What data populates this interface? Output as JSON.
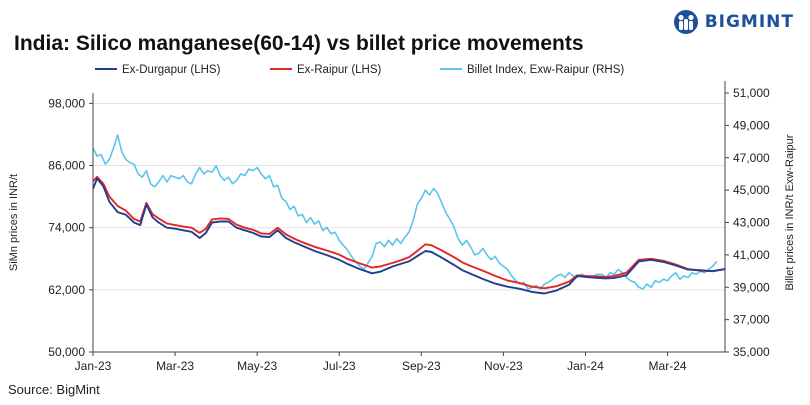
{
  "brand": {
    "logo_text": "BIGMINT"
  },
  "title": "India: Silico manganese(60-14) vs billet price movements",
  "source": "Source: BigMint",
  "colors": {
    "durgapur": "#1f3f8f",
    "raipur": "#e32626",
    "billet": "#5cc4ea",
    "brand": "#1c4f9c"
  },
  "chart_data": {
    "type": "line",
    "title": "India: Silico manganese(60-14) vs billet price movements",
    "ylabel": "SiMn prices in INR/t",
    "y2label": "Billet prices in INR/t Exw-Raipur",
    "ylim": [
      50000,
      100000
    ],
    "y2lim": [
      35000,
      51000
    ],
    "yticks": [
      "50,000",
      "62,000",
      "74,000",
      "86,000",
      "98,000"
    ],
    "y2ticks": [
      "35,000",
      "37,000",
      "39,000",
      "41,000",
      "43,000",
      "45,000",
      "47,000",
      "49,000",
      "51,000"
    ],
    "xticks": [
      "Jan-23",
      "Mar-23",
      "May-23",
      "Jul-23",
      "Sep-23",
      "Nov-23",
      "Jan-24",
      "Mar-24"
    ],
    "legend_position": "top",
    "grid": "horizontal",
    "x_axis": "months Jan-23 to Apr-24 (month offset, 0 = Jan-23)",
    "series": [
      {
        "name": "Ex-Durgapur (LHS)",
        "axis": "left",
        "color": "#1f3f8f",
        "points": [
          [
            0,
            81500
          ],
          [
            0.1,
            83500
          ],
          [
            0.25,
            82000
          ],
          [
            0.4,
            79000
          ],
          [
            0.6,
            77000
          ],
          [
            0.8,
            76500
          ],
          [
            1.0,
            75000
          ],
          [
            1.15,
            74500
          ],
          [
            1.3,
            78500
          ],
          [
            1.45,
            76000
          ],
          [
            1.6,
            75000
          ],
          [
            1.8,
            74000
          ],
          [
            2.0,
            73800
          ],
          [
            2.2,
            73500
          ],
          [
            2.4,
            73200
          ],
          [
            2.6,
            72000
          ],
          [
            2.75,
            73000
          ],
          [
            2.9,
            75000
          ],
          [
            3.1,
            75200
          ],
          [
            3.3,
            75200
          ],
          [
            3.5,
            74000
          ],
          [
            3.7,
            73500
          ],
          [
            3.9,
            73000
          ],
          [
            4.1,
            72300
          ],
          [
            4.3,
            72200
          ],
          [
            4.5,
            73500
          ],
          [
            4.7,
            72000
          ],
          [
            4.9,
            71200
          ],
          [
            5.1,
            70500
          ],
          [
            5.4,
            69500
          ],
          [
            5.7,
            68700
          ],
          [
            6.0,
            67800
          ],
          [
            6.2,
            67000
          ],
          [
            6.5,
            66000
          ],
          [
            6.8,
            65200
          ],
          [
            7.0,
            65500
          ],
          [
            7.3,
            66500
          ],
          [
            7.5,
            67000
          ],
          [
            7.7,
            67500
          ],
          [
            7.9,
            68500
          ],
          [
            8.1,
            69500
          ],
          [
            8.25,
            69300
          ],
          [
            8.5,
            68200
          ],
          [
            8.8,
            66800
          ],
          [
            9.0,
            65800
          ],
          [
            9.2,
            65100
          ],
          [
            9.5,
            64100
          ],
          [
            9.8,
            63200
          ],
          [
            10.1,
            62600
          ],
          [
            10.4,
            62200
          ],
          [
            10.7,
            61600
          ],
          [
            11.0,
            61300
          ],
          [
            11.3,
            61900
          ],
          [
            11.6,
            63000
          ],
          [
            11.8,
            64700
          ],
          [
            12.0,
            64500
          ],
          [
            12.3,
            64300
          ],
          [
            12.5,
            64200
          ],
          [
            12.7,
            64300
          ],
          [
            13.0,
            64800
          ],
          [
            13.3,
            67500
          ],
          [
            13.6,
            67800
          ],
          [
            13.9,
            67400
          ],
          [
            14.2,
            66700
          ],
          [
            14.5,
            65900
          ],
          [
            14.8,
            65800
          ],
          [
            15.1,
            65600
          ],
          [
            15.4,
            66000
          ]
        ]
      },
      {
        "name": "Ex-Raipur (LHS)",
        "axis": "left",
        "color": "#e32626",
        "points": [
          [
            0,
            83000
          ],
          [
            0.1,
            83800
          ],
          [
            0.25,
            82500
          ],
          [
            0.4,
            80000
          ],
          [
            0.6,
            78200
          ],
          [
            0.8,
            77300
          ],
          [
            1.0,
            75700
          ],
          [
            1.15,
            75200
          ],
          [
            1.3,
            78800
          ],
          [
            1.45,
            76600
          ],
          [
            1.6,
            75800
          ],
          [
            1.8,
            74800
          ],
          [
            2.0,
            74500
          ],
          [
            2.2,
            74200
          ],
          [
            2.4,
            74000
          ],
          [
            2.6,
            73000
          ],
          [
            2.75,
            73800
          ],
          [
            2.9,
            75600
          ],
          [
            3.1,
            75800
          ],
          [
            3.3,
            75700
          ],
          [
            3.5,
            74600
          ],
          [
            3.7,
            74000
          ],
          [
            3.9,
            73600
          ],
          [
            4.1,
            72900
          ],
          [
            4.3,
            72800
          ],
          [
            4.5,
            74000
          ],
          [
            4.7,
            72700
          ],
          [
            4.9,
            71900
          ],
          [
            5.1,
            71200
          ],
          [
            5.4,
            70300
          ],
          [
            5.7,
            69600
          ],
          [
            6.0,
            68800
          ],
          [
            6.2,
            68000
          ],
          [
            6.5,
            67100
          ],
          [
            6.8,
            66300
          ],
          [
            7.0,
            66500
          ],
          [
            7.3,
            67200
          ],
          [
            7.5,
            67700
          ],
          [
            7.7,
            68300
          ],
          [
            7.9,
            69500
          ],
          [
            8.1,
            70800
          ],
          [
            8.25,
            70600
          ],
          [
            8.5,
            69600
          ],
          [
            8.8,
            68300
          ],
          [
            9.0,
            67300
          ],
          [
            9.2,
            66600
          ],
          [
            9.5,
            65700
          ],
          [
            9.8,
            64700
          ],
          [
            10.1,
            63800
          ],
          [
            10.4,
            63300
          ],
          [
            10.7,
            62600
          ],
          [
            11.0,
            62300
          ],
          [
            11.3,
            62700
          ],
          [
            11.6,
            63600
          ],
          [
            11.8,
            64800
          ],
          [
            12.0,
            64700
          ],
          [
            12.3,
            64600
          ],
          [
            12.5,
            64500
          ],
          [
            12.7,
            64700
          ],
          [
            13.0,
            65300
          ],
          [
            13.3,
            67800
          ],
          [
            13.6,
            68000
          ],
          [
            13.9,
            67600
          ],
          [
            14.2,
            66900
          ],
          [
            14.5,
            66000
          ],
          [
            14.8,
            65700
          ],
          [
            15.1,
            65600
          ],
          [
            15.4,
            66000
          ]
        ]
      },
      {
        "name": "Billet Index, Exw-Raipur (RHS)",
        "axis": "right",
        "color": "#5cc4ea",
        "points": [
          [
            0,
            47600
          ],
          [
            0.1,
            47100
          ],
          [
            0.2,
            47200
          ],
          [
            0.3,
            46600
          ],
          [
            0.4,
            46900
          ],
          [
            0.5,
            47600
          ],
          [
            0.6,
            48400
          ],
          [
            0.7,
            47400
          ],
          [
            0.8,
            46900
          ],
          [
            0.9,
            46700
          ],
          [
            1.0,
            46600
          ],
          [
            1.1,
            46000
          ],
          [
            1.2,
            45800
          ],
          [
            1.3,
            46200
          ],
          [
            1.4,
            45400
          ],
          [
            1.5,
            45200
          ],
          [
            1.6,
            45500
          ],
          [
            1.7,
            45900
          ],
          [
            1.8,
            45500
          ],
          [
            1.9,
            45900
          ],
          [
            2.0,
            45800
          ],
          [
            2.1,
            45700
          ],
          [
            2.2,
            45900
          ],
          [
            2.3,
            45500
          ],
          [
            2.4,
            45400
          ],
          [
            2.5,
            46000
          ],
          [
            2.6,
            46400
          ],
          [
            2.7,
            46000
          ],
          [
            2.8,
            46200
          ],
          [
            2.9,
            46100
          ],
          [
            3.0,
            46500
          ],
          [
            3.1,
            45900
          ],
          [
            3.2,
            45600
          ],
          [
            3.3,
            45800
          ],
          [
            3.4,
            45400
          ],
          [
            3.5,
            45600
          ],
          [
            3.6,
            46000
          ],
          [
            3.7,
            45900
          ],
          [
            3.8,
            46300
          ],
          [
            3.9,
            46200
          ],
          [
            4.0,
            46400
          ],
          [
            4.1,
            46000
          ],
          [
            4.2,
            45700
          ],
          [
            4.3,
            45900
          ],
          [
            4.4,
            45200
          ],
          [
            4.5,
            45300
          ],
          [
            4.6,
            44500
          ],
          [
            4.7,
            44300
          ],
          [
            4.8,
            43800
          ],
          [
            4.9,
            44000
          ],
          [
            5.0,
            43400
          ],
          [
            5.1,
            43500
          ],
          [
            5.2,
            43000
          ],
          [
            5.3,
            43300
          ],
          [
            5.4,
            42900
          ],
          [
            5.5,
            43100
          ],
          [
            5.6,
            42500
          ],
          [
            5.7,
            42700
          ],
          [
            5.8,
            42300
          ],
          [
            5.9,
            42400
          ],
          [
            6.0,
            41900
          ],
          [
            6.1,
            41600
          ],
          [
            6.2,
            41300
          ],
          [
            6.3,
            40900
          ],
          [
            6.4,
            40600
          ],
          [
            6.5,
            40300
          ],
          [
            6.6,
            40100
          ],
          [
            6.7,
            40500
          ],
          [
            6.8,
            40900
          ],
          [
            6.9,
            41700
          ],
          [
            7.0,
            41800
          ],
          [
            7.1,
            41500
          ],
          [
            7.2,
            41900
          ],
          [
            7.3,
            41600
          ],
          [
            7.4,
            42000
          ],
          [
            7.5,
            41700
          ],
          [
            7.6,
            42100
          ],
          [
            7.7,
            42400
          ],
          [
            7.8,
            43100
          ],
          [
            7.9,
            44100
          ],
          [
            8.0,
            44500
          ],
          [
            8.1,
            45000
          ],
          [
            8.2,
            44700
          ],
          [
            8.3,
            45100
          ],
          [
            8.4,
            44800
          ],
          [
            8.5,
            44200
          ],
          [
            8.6,
            43600
          ],
          [
            8.7,
            43200
          ],
          [
            8.8,
            42700
          ],
          [
            8.9,
            42000
          ],
          [
            9.0,
            41600
          ],
          [
            9.1,
            41900
          ],
          [
            9.2,
            41500
          ],
          [
            9.3,
            41000
          ],
          [
            9.4,
            41100
          ],
          [
            9.5,
            41400
          ],
          [
            9.6,
            41000
          ],
          [
            9.7,
            40700
          ],
          [
            9.8,
            40900
          ],
          [
            9.9,
            40500
          ],
          [
            10.0,
            40300
          ],
          [
            10.1,
            40100
          ],
          [
            10.2,
            39700
          ],
          [
            10.3,
            39400
          ],
          [
            10.4,
            39200
          ],
          [
            10.5,
            39300
          ],
          [
            10.6,
            38900
          ],
          [
            10.7,
            39000
          ],
          [
            10.8,
            39100
          ],
          [
            10.9,
            38900
          ],
          [
            11.0,
            39200
          ],
          [
            11.1,
            39300
          ],
          [
            11.2,
            39500
          ],
          [
            11.3,
            39700
          ],
          [
            11.4,
            39800
          ],
          [
            11.5,
            39600
          ],
          [
            11.6,
            39900
          ],
          [
            11.7,
            39700
          ],
          [
            11.8,
            39600
          ],
          [
            11.9,
            39800
          ],
          [
            12.0,
            39700
          ],
          [
            12.1,
            39600
          ],
          [
            12.2,
            39700
          ],
          [
            12.3,
            39800
          ],
          [
            12.4,
            39800
          ],
          [
            12.5,
            39600
          ],
          [
            12.6,
            39900
          ],
          [
            12.7,
            39800
          ],
          [
            12.8,
            40100
          ],
          [
            12.9,
            39900
          ],
          [
            13.0,
            39600
          ],
          [
            13.1,
            39400
          ],
          [
            13.2,
            39300
          ],
          [
            13.3,
            39000
          ],
          [
            13.4,
            38900
          ],
          [
            13.5,
            39200
          ],
          [
            13.6,
            39000
          ],
          [
            13.7,
            39400
          ],
          [
            13.8,
            39300
          ],
          [
            13.9,
            39500
          ],
          [
            14.0,
            39400
          ],
          [
            14.1,
            39700
          ],
          [
            14.2,
            39900
          ],
          [
            14.3,
            39500
          ],
          [
            14.4,
            39700
          ],
          [
            14.5,
            39600
          ],
          [
            14.6,
            39900
          ],
          [
            14.7,
            39800
          ],
          [
            14.8,
            40000
          ],
          [
            14.9,
            39900
          ],
          [
            15.0,
            40100
          ],
          [
            15.1,
            40300
          ],
          [
            15.2,
            40600
          ]
        ]
      }
    ]
  }
}
